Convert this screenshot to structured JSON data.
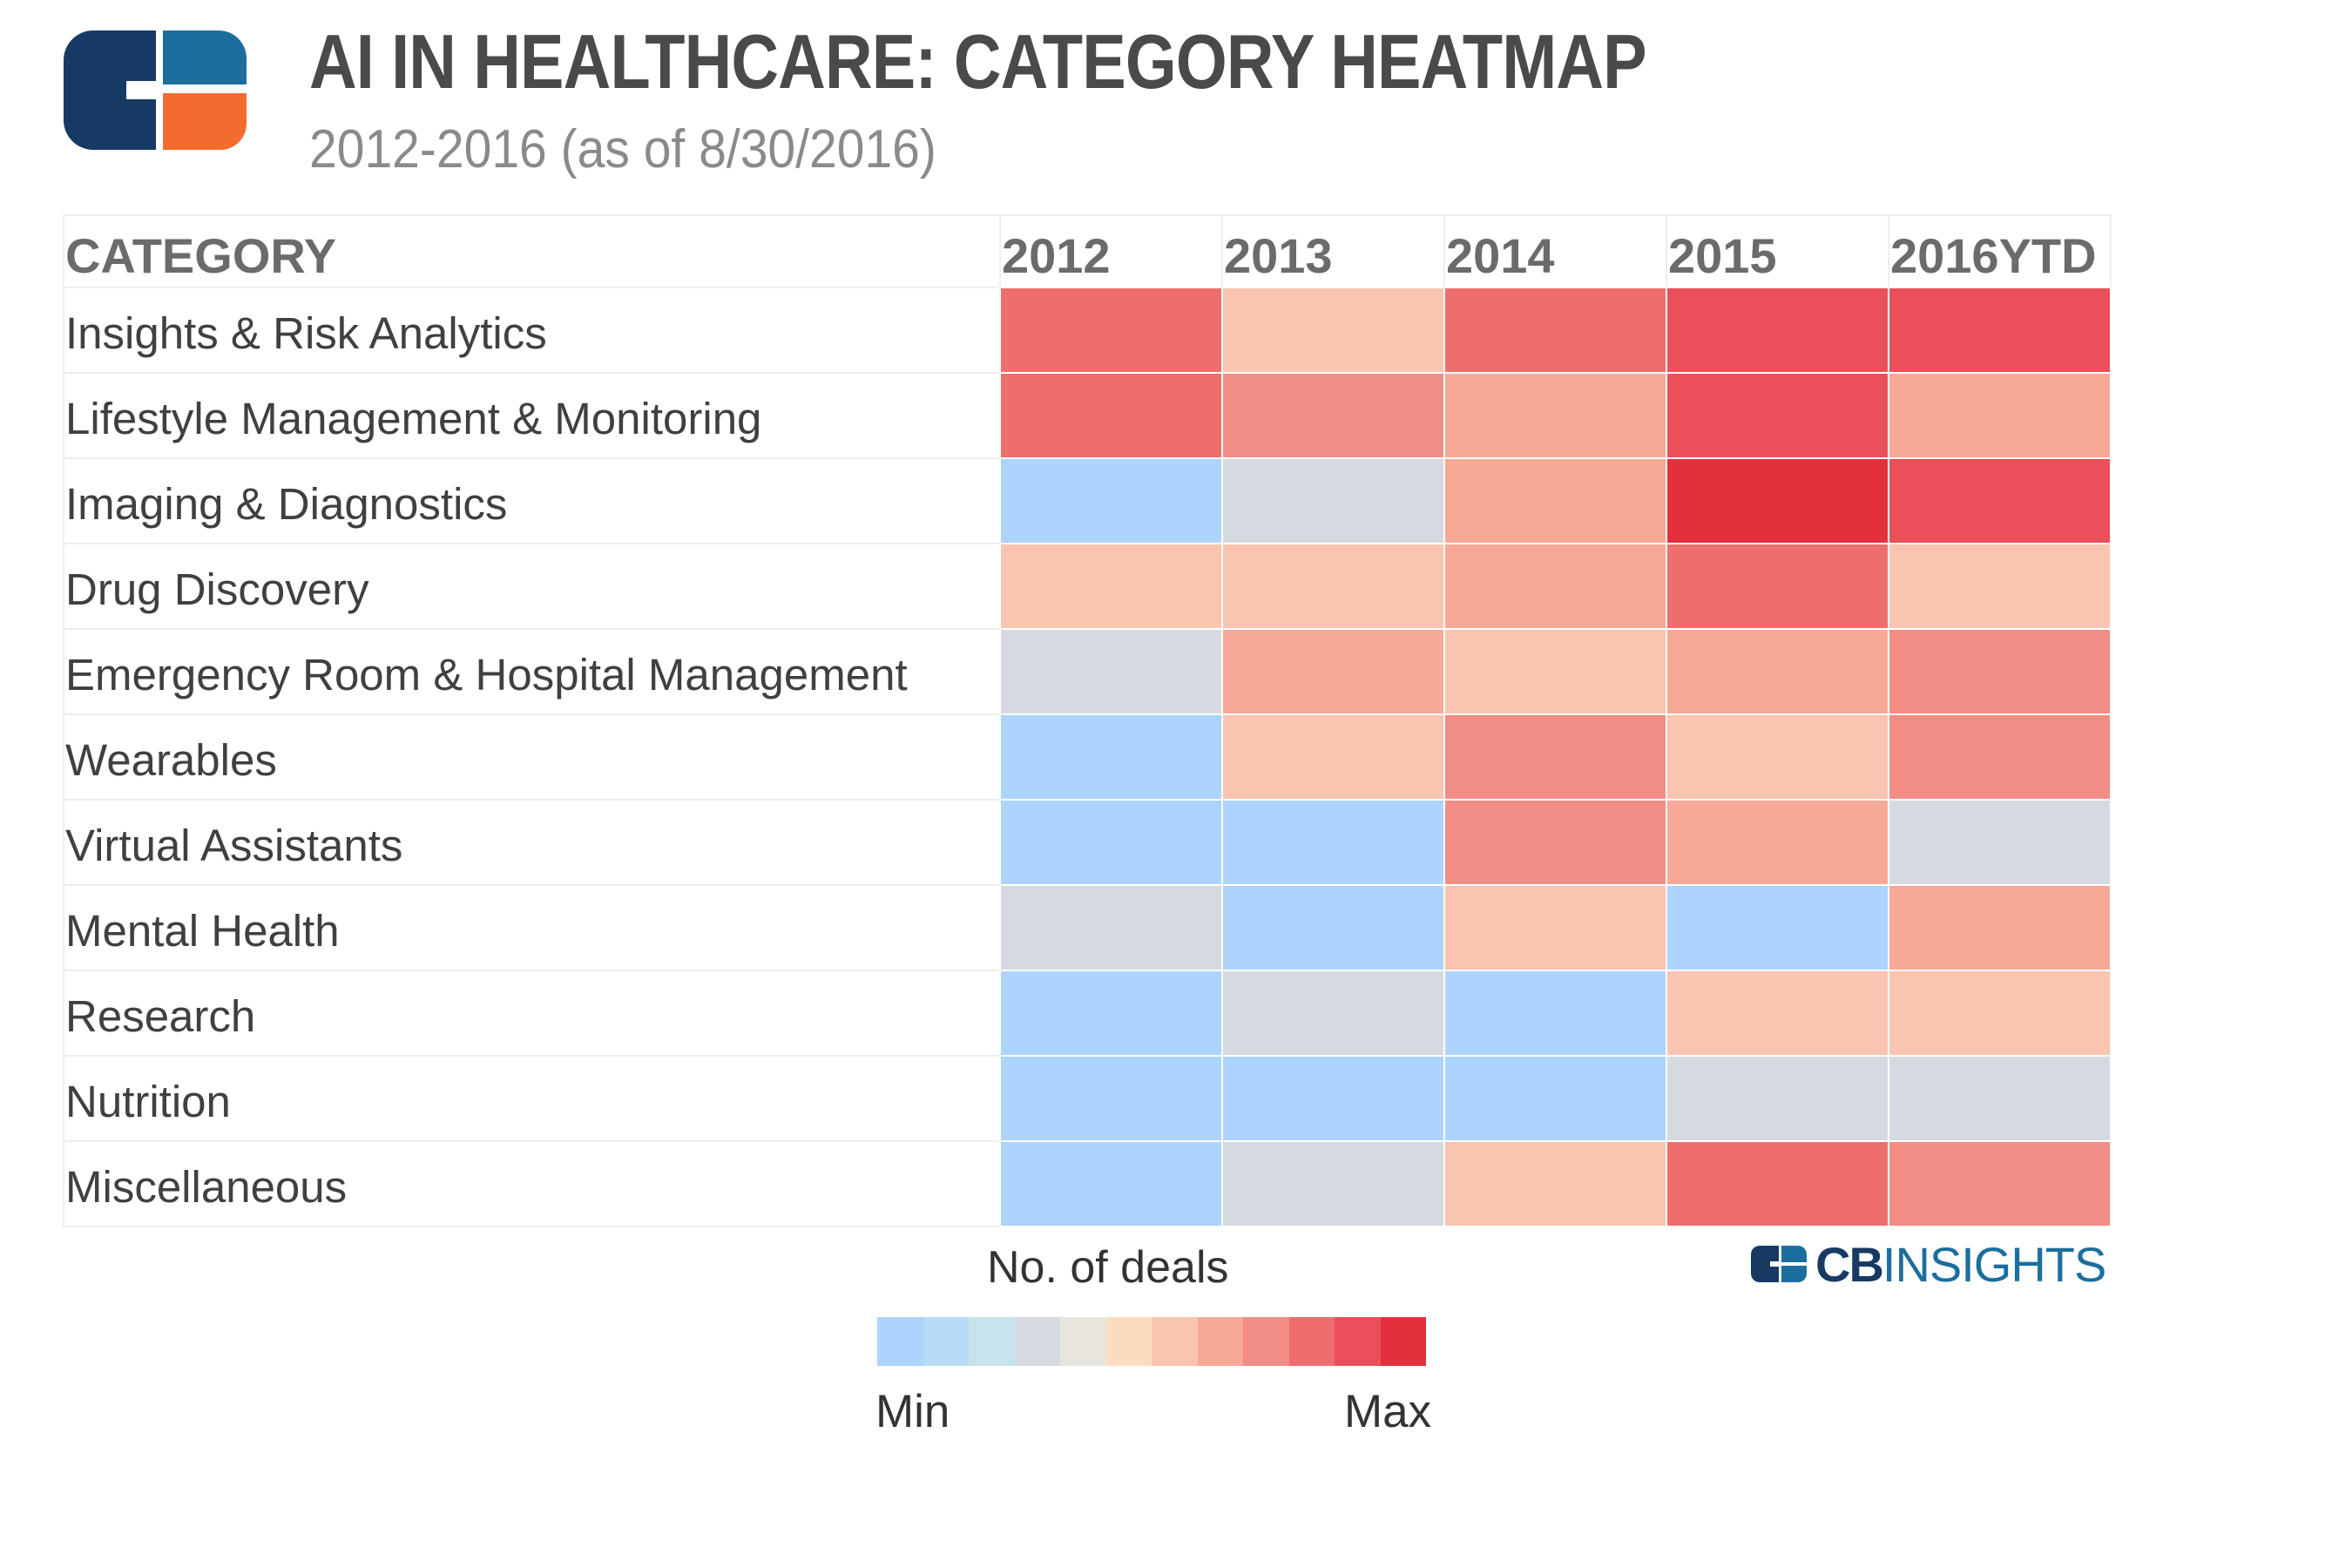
{
  "header": {
    "title": "AI IN HEALTHCARE: CATEGORY HEATMAP",
    "subtitle": "2012-2016 (as of 8/30/2016)"
  },
  "logo": {
    "icon": "cb-insights-logo-icon",
    "colors": {
      "navy": "#163a63",
      "blue": "#1c6e9e",
      "orange": "#f36b2f"
    }
  },
  "chart_data": {
    "type": "heatmap",
    "title": "AI IN HEALTHCARE: CATEGORY HEATMAP",
    "subtitle": "2012-2016 (as of 8/30/2016)",
    "row_header": "CATEGORY",
    "columns": [
      "2012",
      "2013",
      "2014",
      "2015",
      "2016YTD"
    ],
    "rows": [
      "Insights & Risk Analytics",
      "Lifestyle Management & Monitoring",
      "Imaging & Diagnostics",
      "Drug Discovery",
      "Emergency Room & Hospital Management",
      "Wearables",
      "Virtual Assistants",
      "Mental Health",
      "Research",
      "Nutrition",
      "Miscellaneous"
    ],
    "scale": "relative intensity 0 (Min) to 10 (Max), estimated from cell colour",
    "values": [
      [
        8,
        5,
        8,
        9,
        9
      ],
      [
        8,
        7,
        6,
        9,
        6
      ],
      [
        0,
        3,
        6,
        10,
        9
      ],
      [
        5,
        5,
        6,
        8,
        5
      ],
      [
        3,
        6,
        5,
        6,
        7
      ],
      [
        0,
        5,
        7,
        5,
        7
      ],
      [
        0,
        0,
        7,
        6,
        3
      ],
      [
        3,
        0,
        5,
        0,
        6
      ],
      [
        0,
        3,
        0,
        5,
        5
      ],
      [
        0,
        0,
        0,
        3,
        3
      ],
      [
        0,
        3,
        5,
        8,
        7
      ]
    ],
    "color_scale": [
      "#acd4fd",
      "#b8dbf5",
      "#c7e3ec",
      "#d5dae0",
      "#e8e5dc",
      "#fbdcc1",
      "#f9c4b0",
      "#f6a996",
      "#f18d84",
      "#ee6e6e",
      "#e9505a",
      "#e3303d"
    ],
    "legend": {
      "title": "No. of deals",
      "min_label": "Min",
      "max_label": "Max"
    }
  },
  "branding": {
    "name_bold": "CB",
    "name_light": "INSIGHTS"
  }
}
